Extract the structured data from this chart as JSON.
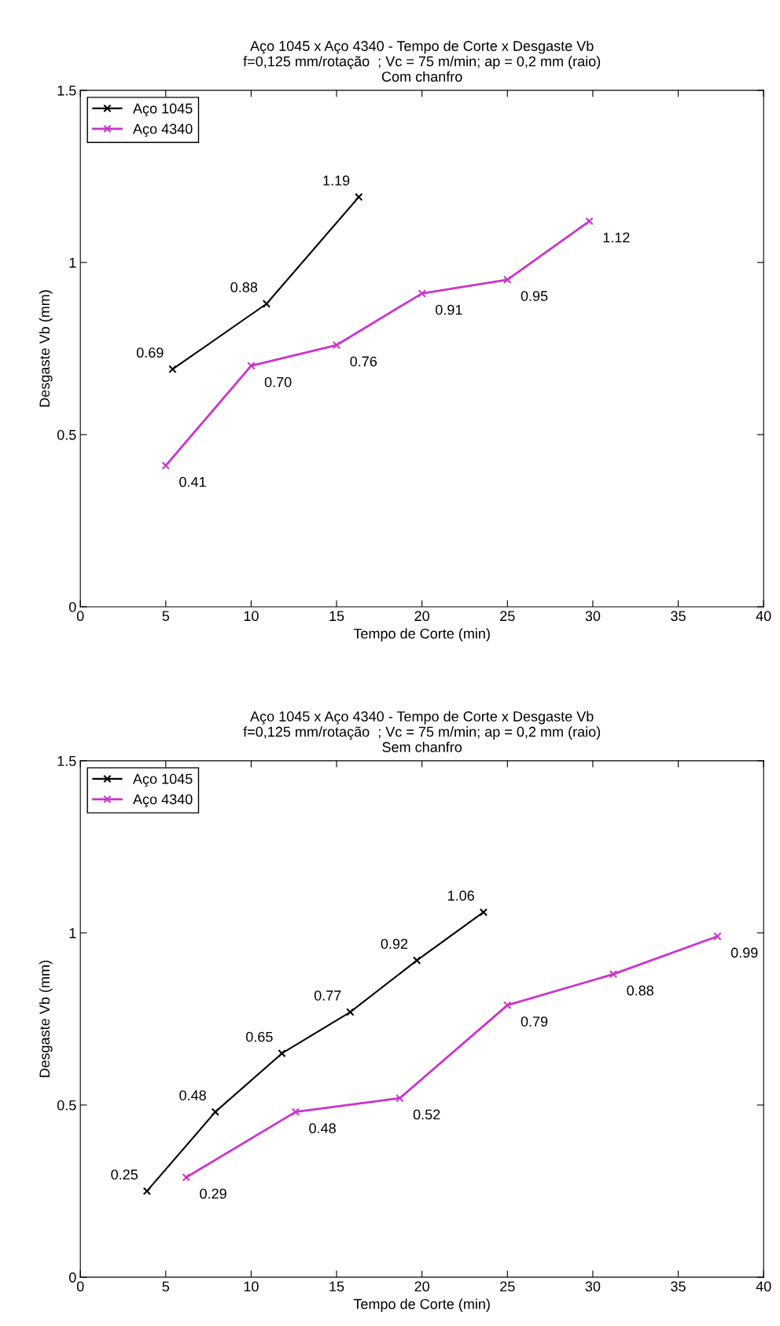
{
  "chart_data": [
    {
      "type": "line",
      "title": "Aço 1045 x Aço 4340 - Tempo de Corte x Desgaste Vb\nf=0,125 mm/rotação  ; Vc = 75 m/min; ap = 0,2 mm (raio)",
      "subtitle": "Com chanfro",
      "xlabel": "Tempo de Corte (min)",
      "ylabel": "Desgaste Vb (mm)",
      "xlim": [
        0,
        40
      ],
      "xticks": [
        0,
        5,
        10,
        15,
        20,
        25,
        30,
        35,
        40
      ],
      "ylim": [
        0,
        1.5
      ],
      "yticks": [
        0,
        0.5,
        1,
        1.5
      ],
      "grid": false,
      "legend": "top left",
      "marker": "cross",
      "line_style": "solid",
      "series": [
        {
          "name": "Aço 1045",
          "color": "#000000",
          "x": [
            5.4,
            10.9,
            16.3
          ],
          "values": [
            0.69,
            0.88,
            1.19
          ],
          "value_labels": [
            "0.69",
            "0.88",
            "1.19"
          ]
        },
        {
          "name": "Aço 4340",
          "color": "#cc33cc",
          "x": [
            5.0,
            10.0,
            15.0,
            20.0,
            25.0,
            29.8
          ],
          "values": [
            0.41,
            0.7,
            0.76,
            0.91,
            0.95,
            1.12
          ],
          "value_labels": [
            "0.41",
            "0.70",
            "0.76",
            "0.91",
            "0.95",
            "1.12"
          ]
        }
      ]
    },
    {
      "type": "line",
      "title": "Aço 1045 x Aço 4340 - Tempo de Corte x Desgaste Vb\nf=0,125 mm/rotação  ; Vc = 75 m/min; ap = 0,2 mm (raio)",
      "subtitle": "Sem chanfro",
      "xlabel": "Tempo de Corte (min)",
      "ylabel": "Desgaste Vb (mm)",
      "xlim": [
        0,
        40
      ],
      "xticks": [
        0,
        5,
        10,
        15,
        20,
        25,
        30,
        35,
        40
      ],
      "ylim": [
        0,
        1.5
      ],
      "yticks": [
        0,
        0.5,
        1,
        1.5
      ],
      "grid": false,
      "legend": "top left",
      "marker": "cross",
      "line_style": "solid",
      "series": [
        {
          "name": "Aço 1045",
          "color": "#000000",
          "x": [
            3.9,
            7.9,
            11.8,
            15.8,
            19.7,
            23.6
          ],
          "values": [
            0.25,
            0.48,
            0.65,
            0.77,
            0.92,
            1.06
          ],
          "value_labels": [
            "0.25",
            "0.48",
            "0.65",
            "0.77",
            "0.92",
            "1.06"
          ]
        },
        {
          "name": "Aço 4340",
          "color": "#cc33cc",
          "x": [
            6.2,
            12.6,
            18.7,
            25.0,
            31.2,
            37.3
          ],
          "values": [
            0.29,
            0.48,
            0.52,
            0.79,
            0.88,
            0.99
          ],
          "value_labels": [
            "0.29",
            "0.48",
            "0.52",
            "0.79",
            "0.88",
            "0.99"
          ]
        }
      ]
    }
  ]
}
